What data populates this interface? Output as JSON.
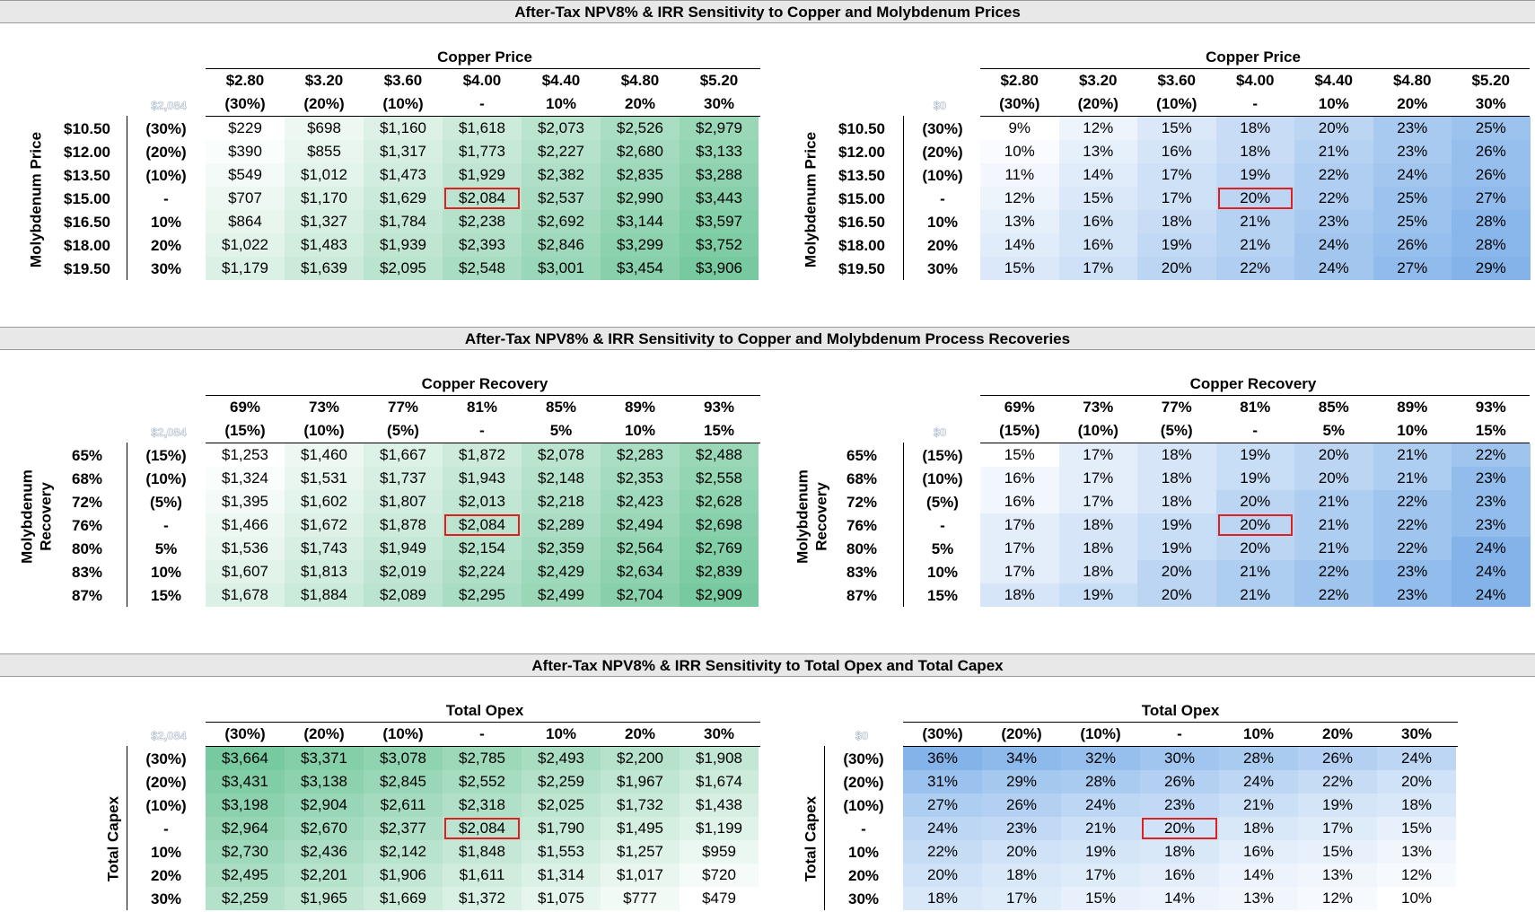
{
  "colors": {
    "npv_low": "#ffffff",
    "npv_high": "#5fc08e",
    "irr_low": "#ffffff",
    "irr_high": "#6ea6e6",
    "highlight_border": "#e02020",
    "title_bar": "#e8e8e8"
  },
  "sections": [
    {
      "title": "After-Tax NPV8% & IRR Sensitivity to Copper and Molybdenum Prices",
      "ghost_npv": "$2,084",
      "ghost_irr": "$0",
      "npv": {
        "col_title": "Copper Price",
        "col_values": [
          "$2.80",
          "$3.20",
          "$3.60",
          "$4.00",
          "$4.40",
          "$4.80",
          "$5.20"
        ],
        "col_pct": [
          "(30%)",
          "(20%)",
          "(10%)",
          "-",
          "10%",
          "20%",
          "30%"
        ],
        "row_title": "Molybdenum Price",
        "row_values": [
          "$10.50",
          "$12.00",
          "$13.50",
          "$15.00",
          "$16.50",
          "$18.00",
          "$19.50"
        ],
        "row_pct": [
          "(30%)",
          "(20%)",
          "(10%)",
          "-",
          "10%",
          "20%",
          "30%"
        ],
        "rows": [
          [
            "$229",
            "$698",
            "$1,160",
            "$1,618",
            "$2,073",
            "$2,526",
            "$2,979"
          ],
          [
            "$390",
            "$855",
            "$1,317",
            "$1,773",
            "$2,227",
            "$2,680",
            "$3,133"
          ],
          [
            "$549",
            "$1,012",
            "$1,473",
            "$1,929",
            "$2,382",
            "$2,835",
            "$3,288"
          ],
          [
            "$707",
            "$1,170",
            "$1,629",
            "$2,084",
            "$2,537",
            "$2,990",
            "$3,443"
          ],
          [
            "$864",
            "$1,327",
            "$1,784",
            "$2,238",
            "$2,692",
            "$3,144",
            "$3,597"
          ],
          [
            "$1,022",
            "$1,483",
            "$1,939",
            "$2,393",
            "$2,846",
            "$3,299",
            "$3,752"
          ],
          [
            "$1,179",
            "$1,639",
            "$2,095",
            "$2,548",
            "$3,001",
            "$3,454",
            "$3,906"
          ]
        ]
      },
      "irr": {
        "col_title": "Copper Price",
        "col_values": [
          "$2.80",
          "$3.20",
          "$3.60",
          "$4.00",
          "$4.40",
          "$4.80",
          "$5.20"
        ],
        "col_pct": [
          "(30%)",
          "(20%)",
          "(10%)",
          "-",
          "10%",
          "20%",
          "30%"
        ],
        "row_title": "Molybdenum Price",
        "row_values": [
          "$10.50",
          "$12.00",
          "$13.50",
          "$15.00",
          "$16.50",
          "$18.00",
          "$19.50"
        ],
        "row_pct": [
          "(30%)",
          "(20%)",
          "(10%)",
          "-",
          "10%",
          "20%",
          "30%"
        ],
        "rows": [
          [
            "9%",
            "12%",
            "15%",
            "18%",
            "20%",
            "23%",
            "25%"
          ],
          [
            "10%",
            "13%",
            "16%",
            "18%",
            "21%",
            "23%",
            "26%"
          ],
          [
            "11%",
            "14%",
            "17%",
            "19%",
            "22%",
            "24%",
            "26%"
          ],
          [
            "12%",
            "15%",
            "17%",
            "20%",
            "22%",
            "25%",
            "27%"
          ],
          [
            "13%",
            "16%",
            "18%",
            "21%",
            "23%",
            "25%",
            "28%"
          ],
          [
            "14%",
            "16%",
            "19%",
            "21%",
            "24%",
            "26%",
            "28%"
          ],
          [
            "15%",
            "17%",
            "20%",
            "22%",
            "24%",
            "27%",
            "29%"
          ]
        ]
      }
    },
    {
      "title": "After-Tax NPV8% & IRR Sensitivity to Copper and Molybdenum Process Recoveries",
      "ghost_npv": "$2,084",
      "ghost_irr": "$0",
      "npv": {
        "col_title": "Copper Recovery",
        "col_values": [
          "69%",
          "73%",
          "77%",
          "81%",
          "85%",
          "89%",
          "93%"
        ],
        "col_pct": [
          "(15%)",
          "(10%)",
          "(5%)",
          "-",
          "5%",
          "10%",
          "15%"
        ],
        "row_title_1": "Molybdenum",
        "row_title_2": "Recovery",
        "row_values": [
          "65%",
          "68%",
          "72%",
          "76%",
          "80%",
          "83%",
          "87%"
        ],
        "row_pct": [
          "(15%)",
          "(10%)",
          "(5%)",
          "-",
          "5%",
          "10%",
          "15%"
        ],
        "rows": [
          [
            "$1,253",
            "$1,460",
            "$1,667",
            "$1,872",
            "$2,078",
            "$2,283",
            "$2,488"
          ],
          [
            "$1,324",
            "$1,531",
            "$1,737",
            "$1,943",
            "$2,148",
            "$2,353",
            "$2,558"
          ],
          [
            "$1,395",
            "$1,602",
            "$1,807",
            "$2,013",
            "$2,218",
            "$2,423",
            "$2,628"
          ],
          [
            "$1,466",
            "$1,672",
            "$1,878",
            "$2,084",
            "$2,289",
            "$2,494",
            "$2,698"
          ],
          [
            "$1,536",
            "$1,743",
            "$1,949",
            "$2,154",
            "$2,359",
            "$2,564",
            "$2,769"
          ],
          [
            "$1,607",
            "$1,813",
            "$2,019",
            "$2,224",
            "$2,429",
            "$2,634",
            "$2,839"
          ],
          [
            "$1,678",
            "$1,884",
            "$2,089",
            "$2,295",
            "$2,499",
            "$2,704",
            "$2,909"
          ]
        ]
      },
      "irr": {
        "col_title": "Copper Recovery",
        "col_values": [
          "69%",
          "73%",
          "77%",
          "81%",
          "85%",
          "89%",
          "93%"
        ],
        "col_pct": [
          "(15%)",
          "(10%)",
          "(5%)",
          "-",
          "5%",
          "10%",
          "15%"
        ],
        "row_title_1": "Molybdenum",
        "row_title_2": "Recovery",
        "row_values": [
          "65%",
          "68%",
          "72%",
          "76%",
          "80%",
          "83%",
          "87%"
        ],
        "row_pct": [
          "(15%)",
          "(10%)",
          "(5%)",
          "-",
          "5%",
          "10%",
          "15%"
        ],
        "rows": [
          [
            "15%",
            "17%",
            "18%",
            "19%",
            "20%",
            "21%",
            "22%"
          ],
          [
            "16%",
            "17%",
            "18%",
            "19%",
            "20%",
            "21%",
            "23%"
          ],
          [
            "16%",
            "17%",
            "18%",
            "20%",
            "21%",
            "22%",
            "23%"
          ],
          [
            "17%",
            "18%",
            "19%",
            "20%",
            "21%",
            "22%",
            "23%"
          ],
          [
            "17%",
            "18%",
            "19%",
            "20%",
            "21%",
            "22%",
            "24%"
          ],
          [
            "17%",
            "18%",
            "20%",
            "21%",
            "22%",
            "23%",
            "24%"
          ],
          [
            "18%",
            "19%",
            "20%",
            "21%",
            "22%",
            "23%",
            "24%"
          ]
        ]
      }
    },
    {
      "title": "After-Tax NPV8% & IRR Sensitivity to Total Opex and Total Capex",
      "ghost_npv": "$2,084",
      "ghost_irr": "$0",
      "npv": {
        "col_title": "Total Opex",
        "col_pct": [
          "(30%)",
          "(20%)",
          "(10%)",
          "-",
          "10%",
          "20%",
          "30%"
        ],
        "row_title": "Total Capex",
        "row_pct": [
          "(30%)",
          "(20%)",
          "(10%)",
          "-",
          "10%",
          "20%",
          "30%"
        ],
        "rows": [
          [
            "$3,664",
            "$3,371",
            "$3,078",
            "$2,785",
            "$2,493",
            "$2,200",
            "$1,908"
          ],
          [
            "$3,431",
            "$3,138",
            "$2,845",
            "$2,552",
            "$2,259",
            "$1,967",
            "$1,674"
          ],
          [
            "$3,198",
            "$2,904",
            "$2,611",
            "$2,318",
            "$2,025",
            "$1,732",
            "$1,438"
          ],
          [
            "$2,964",
            "$2,670",
            "$2,377",
            "$2,084",
            "$1,790",
            "$1,495",
            "$1,199"
          ],
          [
            "$2,730",
            "$2,436",
            "$2,142",
            "$1,848",
            "$1,553",
            "$1,257",
            "$959"
          ],
          [
            "$2,495",
            "$2,201",
            "$1,906",
            "$1,611",
            "$1,314",
            "$1,017",
            "$720"
          ],
          [
            "$2,259",
            "$1,965",
            "$1,669",
            "$1,372",
            "$1,075",
            "$777",
            "$479"
          ]
        ]
      },
      "irr": {
        "col_title": "Total Opex",
        "col_pct": [
          "(30%)",
          "(20%)",
          "(10%)",
          "-",
          "10%",
          "20%",
          "30%"
        ],
        "row_title": "Total Capex",
        "row_pct": [
          "(30%)",
          "(20%)",
          "(10%)",
          "-",
          "10%",
          "20%",
          "30%"
        ],
        "rows": [
          [
            "36%",
            "34%",
            "32%",
            "30%",
            "28%",
            "26%",
            "24%"
          ],
          [
            "31%",
            "29%",
            "28%",
            "26%",
            "24%",
            "22%",
            "20%"
          ],
          [
            "27%",
            "26%",
            "24%",
            "23%",
            "21%",
            "19%",
            "18%"
          ],
          [
            "24%",
            "23%",
            "21%",
            "20%",
            "18%",
            "17%",
            "15%"
          ],
          [
            "22%",
            "20%",
            "19%",
            "18%",
            "16%",
            "15%",
            "13%"
          ],
          [
            "20%",
            "18%",
            "17%",
            "16%",
            "14%",
            "13%",
            "12%"
          ],
          [
            "18%",
            "17%",
            "15%",
            "14%",
            "13%",
            "12%",
            "10%"
          ]
        ]
      }
    }
  ]
}
